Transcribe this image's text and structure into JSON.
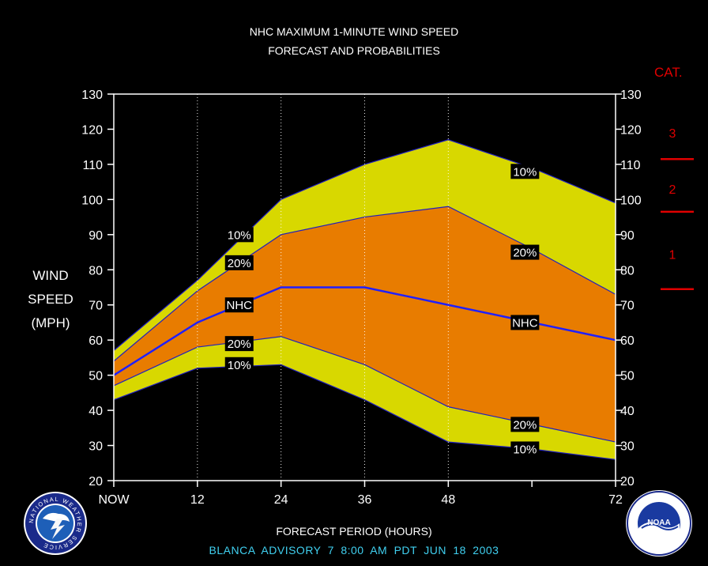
{
  "titles": {
    "line1": "NHC MAXIMUM 1-MINUTE WIND SPEED",
    "line2": "FORECAST AND PROBABILITIES"
  },
  "y_axis_label": [
    "WIND",
    "SPEED",
    "(MPH)"
  ],
  "x_axis_label": "FORECAST PERIOD (HOURS)",
  "advisory": "BLANCA   ADVISORY  7 8:00  AM  PDT  JUN  18  2003",
  "category_key": {
    "title": "CAT.",
    "categories": [
      {
        "label": "1",
        "min": 74,
        "max": 95
      },
      {
        "label": "2",
        "min": 96,
        "max": 110
      },
      {
        "label": "3",
        "min": 111,
        "max": 130
      }
    ],
    "color": "#e00000"
  },
  "logos": {
    "left": {
      "icon": "nws-logo",
      "text": "NATIONAL WEATHER SERVICE"
    },
    "right": {
      "icon": "noaa-logo",
      "text": "NOAA"
    }
  },
  "chart_data": {
    "type": "area",
    "title": "NHC MAXIMUM 1-MINUTE WIND SPEED FORECAST AND PROBABILITIES",
    "xlabel": "FORECAST PERIOD (HOURS)",
    "ylabel": "WIND SPEED (MPH)",
    "x": [
      0,
      12,
      24,
      36,
      48,
      60,
      72
    ],
    "x_tick_labels": [
      "NOW",
      "12",
      "24",
      "36",
      "48",
      "",
      "72"
    ],
    "xlim": [
      0,
      72
    ],
    "ylim": [
      20,
      130
    ],
    "y_ticks": [
      20,
      30,
      40,
      50,
      60,
      70,
      80,
      90,
      100,
      110,
      120,
      130
    ],
    "grid_x": [
      12,
      24,
      36,
      48
    ],
    "colors": {
      "outer_band": "#d8d800",
      "inner_band": "#e87c00",
      "nhc_line": "#2020ff",
      "band_edge": "#2020c0"
    },
    "series": [
      {
        "name": "10%",
        "role": "upper",
        "values": [
          57,
          77,
          100,
          110,
          117,
          109,
          99
        ]
      },
      {
        "name": "20%",
        "role": "upper",
        "values": [
          54,
          74,
          90,
          95,
          98,
          86,
          73
        ]
      },
      {
        "name": "NHC",
        "role": "forecast",
        "values": [
          50,
          65,
          75,
          75,
          70,
          65,
          60
        ]
      },
      {
        "name": "20%",
        "role": "lower",
        "values": [
          47,
          58,
          61,
          53,
          41,
          36,
          31
        ]
      },
      {
        "name": "10%",
        "role": "lower",
        "values": [
          43,
          52,
          53,
          43,
          31,
          29,
          26
        ]
      }
    ],
    "annotations": [
      {
        "text": "10%",
        "x": 18,
        "y": 90
      },
      {
        "text": "20%",
        "x": 18,
        "y": 82
      },
      {
        "text": "NHC",
        "x": 18,
        "y": 70
      },
      {
        "text": "20%",
        "x": 18,
        "y": 59
      },
      {
        "text": "10%",
        "x": 18,
        "y": 53
      },
      {
        "text": "10%",
        "x": 59,
        "y": 108
      },
      {
        "text": "20%",
        "x": 59,
        "y": 85
      },
      {
        "text": "NHC",
        "x": 59,
        "y": 65
      },
      {
        "text": "20%",
        "x": 59,
        "y": 36
      },
      {
        "text": "10%",
        "x": 59,
        "y": 29
      }
    ]
  }
}
